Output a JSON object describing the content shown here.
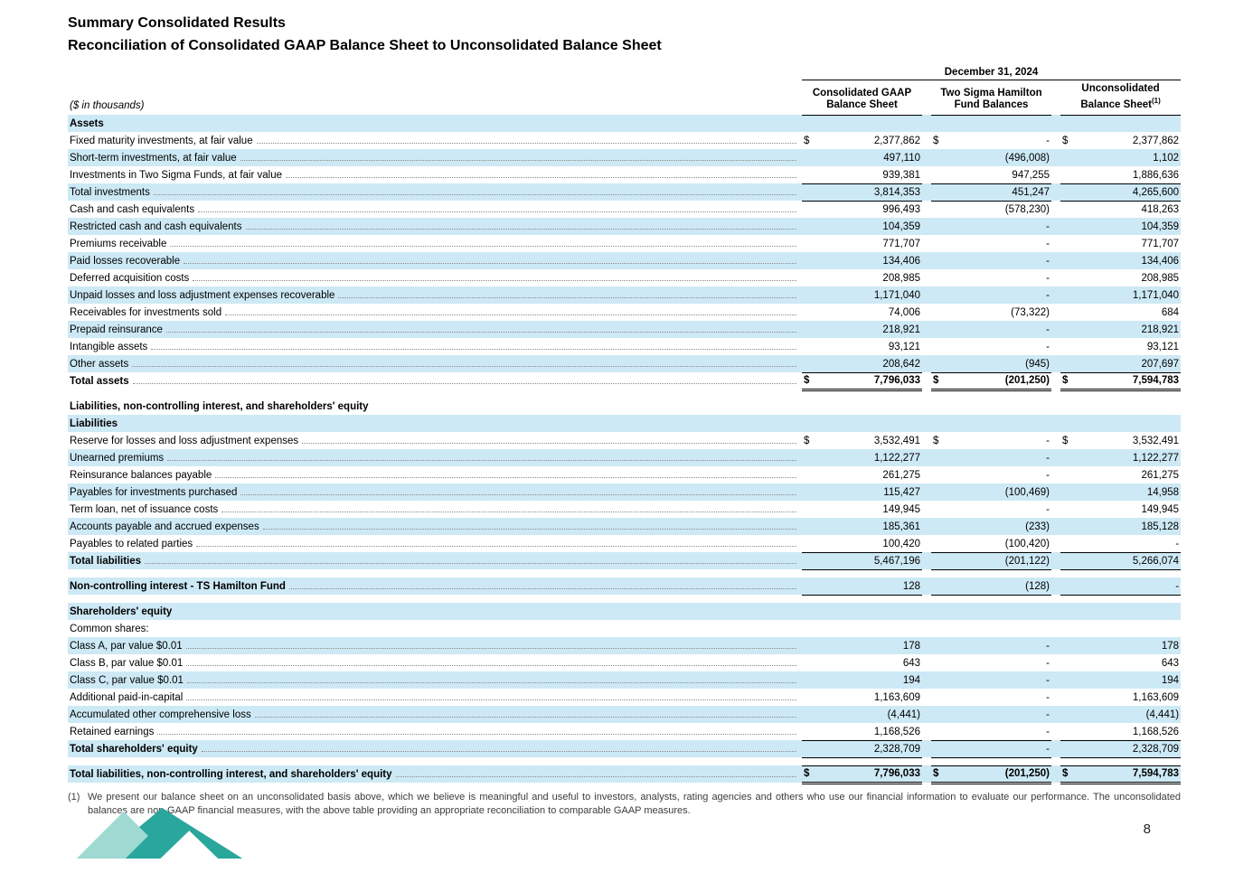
{
  "page": {
    "title": "Summary Consolidated Results",
    "subtitle": "Reconciliation of Consolidated GAAP Balance Sheet to Unconsolidated Balance Sheet",
    "page_number": "8"
  },
  "colors": {
    "row_shade": "#cde9f5",
    "logo_dark": "#2aa79d",
    "logo_light": "#9ed9d2",
    "leader": "#8a8a8a"
  },
  "table": {
    "date_header": "December 31, 2024",
    "unit_label": "($ in thousands)",
    "columns": [
      {
        "text": "Consolidated GAAP Balance Sheet"
      },
      {
        "text": "Two Sigma Hamilton Fund Balances"
      },
      {
        "text": "Unconsolidated Balance Sheet",
        "sup": "(1)"
      }
    ],
    "rows": [
      {
        "label": "Assets",
        "section": true,
        "shade": true
      },
      {
        "label": "Fixed maturity investments, at fair value",
        "dollar": true,
        "values": [
          "2,377,862",
          "-",
          "2,377,862"
        ]
      },
      {
        "label": "Short-term investments, at fair value",
        "values": [
          "497,110",
          "(496,008)",
          "1,102"
        ],
        "shade": true
      },
      {
        "label": "Investments in Two Sigma Funds, at fair value",
        "values": [
          "939,381",
          "947,255",
          "1,886,636"
        ]
      },
      {
        "label": "Total investments",
        "values": [
          "3,814,353",
          "451,247",
          "4,265,600"
        ],
        "shade": true,
        "topline": true,
        "bottomline": true
      },
      {
        "label": "Cash and cash equivalents",
        "values": [
          "996,493",
          "(578,230)",
          "418,263"
        ]
      },
      {
        "label": "Restricted cash and cash equivalents",
        "values": [
          "104,359",
          "-",
          "104,359"
        ],
        "shade": true
      },
      {
        "label": "Premiums receivable",
        "values": [
          "771,707",
          "-",
          "771,707"
        ]
      },
      {
        "label": "Paid losses recoverable",
        "values": [
          "134,406",
          "-",
          "134,406"
        ],
        "shade": true
      },
      {
        "label": "Deferred acquisition costs",
        "values": [
          "208,985",
          "-",
          "208,985"
        ]
      },
      {
        "label": "Unpaid losses and loss adjustment expenses recoverable",
        "values": [
          "1,171,040",
          "-",
          "1,171,040"
        ],
        "shade": true
      },
      {
        "label": "Receivables for investments sold",
        "values": [
          "74,006",
          "(73,322)",
          "684"
        ]
      },
      {
        "label": "Prepaid reinsurance",
        "values": [
          "218,921",
          "-",
          "218,921"
        ],
        "shade": true
      },
      {
        "label": "Intangible assets",
        "values": [
          "93,121",
          "-",
          "93,121"
        ]
      },
      {
        "label": "Other assets",
        "values": [
          "208,642",
          "(945)",
          "207,697"
        ],
        "shade": true
      },
      {
        "label": "Total assets",
        "bold": true,
        "valueBold": true,
        "dollar": true,
        "values": [
          "7,796,033",
          "(201,250)",
          "7,594,783"
        ],
        "topline": true,
        "double": true
      },
      {
        "spacer": true
      },
      {
        "label": "Liabilities, non-controlling interest, and shareholders' equity",
        "section": true
      },
      {
        "label": "Liabilities",
        "section": true,
        "shade": true
      },
      {
        "label": "Reserve for losses and loss adjustment expenses",
        "dollar": true,
        "values": [
          "3,532,491",
          "-",
          "3,532,491"
        ]
      },
      {
        "label": "Unearned premiums",
        "values": [
          "1,122,277",
          "-",
          "1,122,277"
        ],
        "shade": true
      },
      {
        "label": "Reinsurance balances payable",
        "values": [
          "261,275",
          "-",
          "261,275"
        ]
      },
      {
        "label": "Payables for investments purchased",
        "values": [
          "115,427",
          "(100,469)",
          "14,958"
        ],
        "shade": true
      },
      {
        "label": "Term loan, net of issuance costs",
        "values": [
          "149,945",
          "-",
          "149,945"
        ]
      },
      {
        "label": "Accounts payable and accrued expenses",
        "values": [
          "185,361",
          "(233)",
          "185,128"
        ],
        "shade": true
      },
      {
        "label": "Payables to related parties",
        "values": [
          "100,420",
          "(100,420)",
          "-"
        ]
      },
      {
        "label": "Total liabilities",
        "bold": true,
        "values": [
          "5,467,196",
          "(201,122)",
          "5,266,074"
        ],
        "shade": true,
        "topline": true,
        "bottomline": true
      },
      {
        "spacer": true
      },
      {
        "label": "Non-controlling interest - TS Hamilton Fund",
        "bold": true,
        "values": [
          "128",
          "(128)",
          "-"
        ],
        "shade": true,
        "bottomline": true
      },
      {
        "spacer": true
      },
      {
        "label": "Shareholders' equity",
        "section": true,
        "shade": true
      },
      {
        "label": "Common shares:"
      },
      {
        "label": "Class A, par value $0.01",
        "values": [
          "178",
          "-",
          "178"
        ],
        "shade": true
      },
      {
        "label": "Class B, par value $0.01",
        "values": [
          "643",
          "-",
          "643"
        ]
      },
      {
        "label": "Class C, par value $0.01",
        "values": [
          "194",
          "-",
          "194"
        ],
        "shade": true
      },
      {
        "label": "Additional paid-in-capital",
        "values": [
          "1,163,609",
          "-",
          "1,163,609"
        ]
      },
      {
        "label": "Accumulated other comprehensive loss",
        "values": [
          "(4,441)",
          "-",
          "(4,441)"
        ],
        "shade": true
      },
      {
        "label": "Retained earnings",
        "values": [
          "1,168,526",
          "-",
          "1,168,526"
        ]
      },
      {
        "label": "Total shareholders' equity",
        "bold": true,
        "values": [
          "2,328,709",
          "-",
          "2,328,709"
        ],
        "shade": true,
        "topline": true,
        "bottomline": true
      },
      {
        "spacer": true
      },
      {
        "label": "Total liabilities, non-controlling interest, and shareholders' equity",
        "bold": true,
        "valueBold": true,
        "dollar": true,
        "values": [
          "7,796,033",
          "(201,250)",
          "7,594,783"
        ],
        "shade": true,
        "topline": true,
        "double": true
      }
    ]
  },
  "footnote": {
    "marker": "(1)",
    "text": "We present our balance sheet on an unconsolidated basis above, which we believe is meaningful and useful to investors, analysts, rating agencies and others who use our financial information to evaluate our performance. The unconsolidated balances are non-GAAP financial measures, with the above table providing an appropriate reconciliation to comparable GAAP measures."
  }
}
